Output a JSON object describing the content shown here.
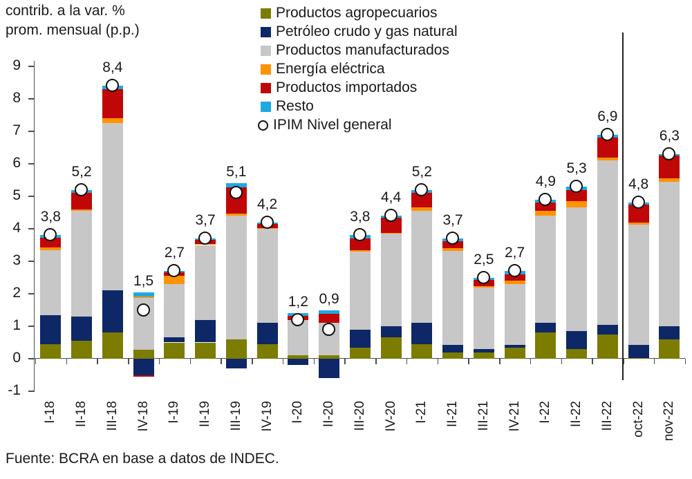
{
  "title": {
    "line1": "contrib. a la var. %",
    "line2": "prom. mensual (p.p.)"
  },
  "source": "Fuente: BCRA en base a datos de INDEC.",
  "colors": {
    "axis": "#4d4d4d",
    "text": "#1a1a1a",
    "divider": "#222222",
    "marker_fill": "#ffffff",
    "marker_stroke": "#111111"
  },
  "chart_data": {
    "type": "bar",
    "stacked": true,
    "title": "contrib. a la var. % prom. mensual (p.p.)",
    "xlabel": "",
    "ylabel": "contrib. a la var. % prom. mensual (p.p.)",
    "ylim": [
      -1,
      9
    ],
    "yticks": [
      9,
      8,
      7,
      6,
      5,
      4,
      3,
      2,
      1,
      0,
      -1
    ],
    "grid": false,
    "legend_position": "top-center",
    "divider_after_category": "III-22",
    "categories": [
      "I-18",
      "II-18",
      "III-18",
      "IV-18",
      "I-19",
      "II-19",
      "III-19",
      "IV-19",
      "I-20",
      "II-20",
      "III-20",
      "IV-20",
      "I-21",
      "II-21",
      "III-21",
      "IV-21",
      "I-22",
      "II-22",
      "III-22",
      "oct-22",
      "nov-22"
    ],
    "series": [
      {
        "name": "Productos agropecuarios",
        "slug": "agropecuarios",
        "color": "#7c7c00",
        "values": [
          0.45,
          0.55,
          0.8,
          0.28,
          0.5,
          0.5,
          0.6,
          0.45,
          0.1,
          0.1,
          0.35,
          0.65,
          0.45,
          0.2,
          0.2,
          0.35,
          0.8,
          0.3,
          0.75,
          0.03,
          0.6
        ]
      },
      {
        "name": "Petróleo crudo y gas natural",
        "slug": "petroleo-gas",
        "color": "#0e2766",
        "values": [
          0.9,
          0.75,
          1.3,
          -0.5,
          0.15,
          0.7,
          -0.3,
          0.65,
          -0.2,
          -0.6,
          0.55,
          0.35,
          0.65,
          0.22,
          0.1,
          0.08,
          0.3,
          0.55,
          0.3,
          0.4,
          0.4
        ]
      },
      {
        "name": "Productos manufacturados",
        "slug": "manufacturados",
        "color": "#c7c7c7",
        "values": [
          2.0,
          3.25,
          5.15,
          1.6,
          1.65,
          2.3,
          3.8,
          2.9,
          1.1,
          1.0,
          2.4,
          2.85,
          3.45,
          2.9,
          1.9,
          1.87,
          3.3,
          3.8,
          5.05,
          3.7,
          4.45
        ]
      },
      {
        "name": "Energía eléctrica",
        "slug": "energia-electrica",
        "color": "#ff9300",
        "values": [
          0.08,
          0.05,
          0.15,
          0.04,
          0.25,
          0.03,
          0.07,
          0.03,
          0.0,
          0.0,
          0.03,
          0.03,
          0.1,
          0.08,
          0.03,
          0.1,
          0.15,
          0.2,
          0.1,
          0.06,
          0.1
        ]
      },
      {
        "name": "Productos importados",
        "slug": "importados",
        "color": "#c00606",
        "values": [
          0.3,
          0.5,
          0.9,
          -0.05,
          0.1,
          0.12,
          0.8,
          0.12,
          0.12,
          0.28,
          0.37,
          0.47,
          0.45,
          0.22,
          0.2,
          0.2,
          0.25,
          0.35,
          0.6,
          0.55,
          0.7
        ]
      },
      {
        "name": "Resto",
        "slug": "resto",
        "color": "#1fa9e4",
        "values": [
          0.07,
          0.1,
          0.1,
          0.13,
          0.05,
          0.05,
          0.13,
          0.05,
          0.08,
          0.12,
          0.1,
          0.05,
          0.1,
          0.08,
          0.07,
          0.1,
          0.1,
          0.1,
          0.1,
          0.06,
          0.05
        ]
      }
    ],
    "marker_series": {
      "name": "IPIM Nivel general",
      "marker": "circle-white",
      "values": [
        3.8,
        5.2,
        8.4,
        1.5,
        2.7,
        3.7,
        5.1,
        4.2,
        1.2,
        0.9,
        3.8,
        4.4,
        5.2,
        3.7,
        2.5,
        2.7,
        4.9,
        5.3,
        6.9,
        4.8,
        6.3
      ]
    },
    "point_labels": [
      "3,8",
      "5,2",
      "8,4",
      "1,5",
      "2,7",
      "3,7",
      "5,1",
      "4,2",
      "1,2",
      "0,9",
      "3,8",
      "4,4",
      "5,2",
      "3,7",
      "2,5",
      "2,7",
      "4,9",
      "5,3",
      "6,9",
      "4,8",
      "6,3"
    ]
  }
}
